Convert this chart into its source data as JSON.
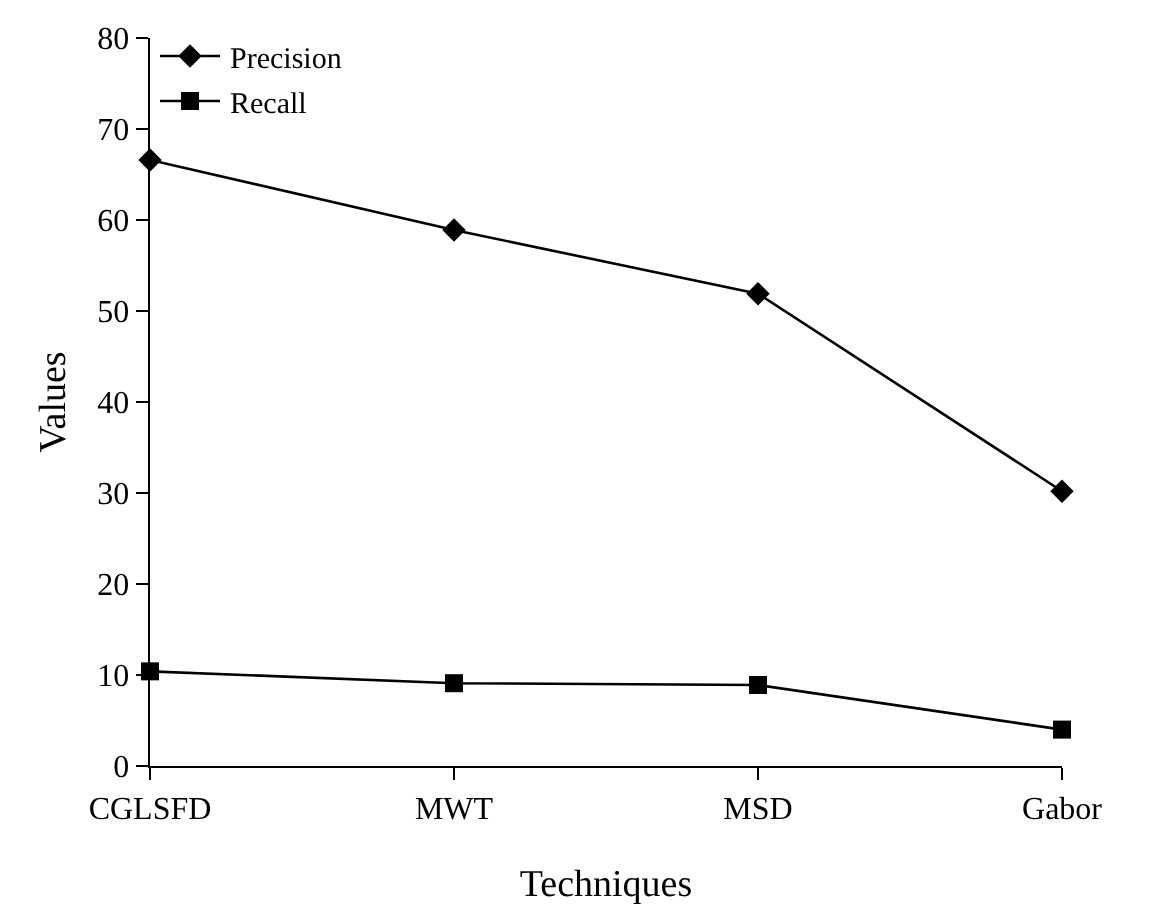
{
  "chart_data": {
    "type": "line",
    "xlabel": "Techniques",
    "ylabel": "Values",
    "categories": [
      "CGLSFD",
      "MWT",
      "MSD",
      "Gabor"
    ],
    "series": [
      {
        "name": "Precision",
        "color": "#000000",
        "marker": "diamond",
        "values": [
          66.6,
          58.9,
          51.9,
          30.2
        ]
      },
      {
        "name": "Recall",
        "color": "#000000",
        "marker": "square",
        "values": [
          10.4,
          9.1,
          8.9,
          4.0
        ]
      }
    ],
    "ylim": [
      0,
      80
    ],
    "yticks": [
      0,
      10,
      20,
      30,
      40,
      50,
      60,
      70,
      80
    ],
    "legend": "top left",
    "line_style": "solid"
  }
}
